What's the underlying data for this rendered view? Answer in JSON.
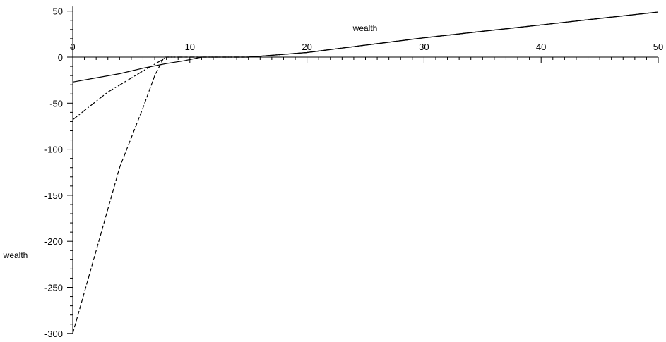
{
  "chart_data": {
    "type": "line",
    "xlabel": "wealth",
    "ylabel": "wealth",
    "xlim": [
      0,
      50
    ],
    "ylim": [
      -300,
      55
    ],
    "x_ticks": [
      0,
      10,
      20,
      30,
      40,
      50
    ],
    "x_tick_labels": [
      "0",
      "10",
      "20",
      "30",
      "40",
      "50"
    ],
    "y_ticks": [
      50,
      0,
      -50,
      -100,
      -150,
      -200,
      -250,
      -300
    ],
    "y_tick_labels": [
      "50",
      "0",
      "-50",
      "-100",
      "-150",
      "-200",
      "-250",
      "-300"
    ],
    "grid": false,
    "legend": "none",
    "series": [
      {
        "style": "solid",
        "color": "#000000",
        "x": [
          0,
          4,
          6,
          8,
          9.5,
          11,
          15,
          16,
          20,
          25,
          30,
          35,
          40,
          45,
          50
        ],
        "y": [
          -27,
          -18,
          -12,
          -7,
          -4,
          0,
          0,
          1,
          5,
          13,
          21,
          28,
          35,
          42,
          49
        ]
      },
      {
        "style": "dashdot",
        "color": "#000000",
        "x": [
          0,
          3,
          6,
          7.5,
          8,
          11,
          15,
          16,
          20,
          25,
          30,
          35,
          40,
          45,
          50
        ],
        "y": [
          -68,
          -38,
          -15,
          -4,
          0,
          0,
          0,
          1,
          5,
          13,
          21,
          28,
          35,
          42,
          49
        ]
      },
      {
        "style": "dashed",
        "color": "#000000",
        "x": [
          0,
          2,
          4,
          6,
          7,
          7.8,
          11,
          15,
          16,
          20,
          25,
          30,
          35,
          40,
          45,
          50
        ],
        "y": [
          -300,
          -210,
          -120,
          -55,
          -20,
          0,
          0,
          0,
          1,
          5,
          13,
          21,
          28,
          35,
          42,
          49
        ]
      }
    ]
  }
}
